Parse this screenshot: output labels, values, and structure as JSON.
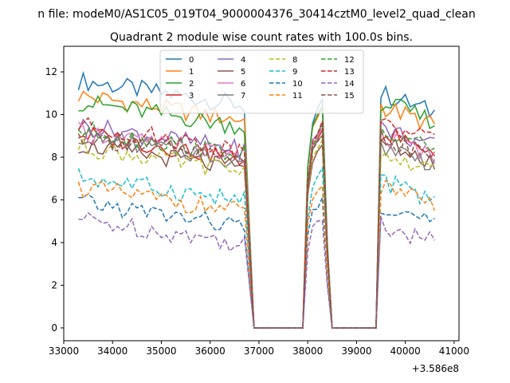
{
  "chart_data": {
    "type": "line",
    "suptitle": "n file: modeM0/AS1C05_019T04_9000004376_30414cztM0_level2_quad_clean",
    "title": "Quadrant 2 module wise count rates with 100.0s bins.",
    "xlabel": "",
    "ylabel": "",
    "x_offset_label": "+3.586e8",
    "xlim": [
      33000,
      41100
    ],
    "ylim": [
      -0.6,
      13.2
    ],
    "xticks": [
      33000,
      34000,
      35000,
      36000,
      37000,
      38000,
      39000,
      40000,
      41000
    ],
    "yticks": [
      0,
      2,
      4,
      6,
      8,
      10,
      12
    ],
    "legend_position": "upper-center",
    "grid": false,
    "segments": [
      {
        "x_start": 33300,
        "x_step": 100,
        "n": 35
      },
      {
        "x_start": 38000,
        "x_step": 100,
        "n": 5
      },
      {
        "x_start": 39500,
        "x_step": 100,
        "n": 12
      }
    ],
    "gap_x": [
      36900,
      37000,
      37100,
      37200,
      37300,
      37400,
      37500,
      37600,
      37700,
      37800,
      37900,
      38500,
      38600,
      38700,
      38800,
      38900,
      39000,
      39100,
      39200,
      39300,
      39400
    ],
    "series": [
      {
        "name": "0",
        "color": "#1f77b4",
        "dash": "solid",
        "level": 11.6,
        "spike": 10.2,
        "after": 11.0
      },
      {
        "name": "1",
        "color": "#ff7f0e",
        "dash": "solid",
        "level": 10.9,
        "spike": 9.9,
        "after": 10.4
      },
      {
        "name": "2",
        "color": "#2ca02c",
        "dash": "solid",
        "level": 10.6,
        "spike": 10.0,
        "after": 10.6
      },
      {
        "name": "3",
        "color": "#d62728",
        "dash": "solid",
        "level": 9.1,
        "spike": 8.8,
        "after": 9.2
      },
      {
        "name": "4",
        "color": "#9467bd",
        "dash": "solid",
        "level": 9.5,
        "spike": 9.2,
        "after": 9.4
      },
      {
        "name": "5",
        "color": "#8c564b",
        "dash": "solid",
        "level": 8.6,
        "spike": 8.2,
        "after": 8.7
      },
      {
        "name": "6",
        "color": "#e377c2",
        "dash": "solid",
        "level": 9.2,
        "spike": 8.9,
        "after": 9.0
      },
      {
        "name": "7",
        "color": "#7f7f7f",
        "dash": "solid",
        "level": 9.0,
        "spike": 8.7,
        "after": 8.6
      },
      {
        "name": "8",
        "color": "#bcbd22",
        "dash": "dashed",
        "level": 8.5,
        "spike": 8.3,
        "after": 8.2
      },
      {
        "name": "9",
        "color": "#17becf",
        "dash": "dashed",
        "level": 7.1,
        "spike": 7.0,
        "after": 6.9
      },
      {
        "name": "10",
        "color": "#1f77b4",
        "dash": "dashed",
        "level": 5.9,
        "spike": 5.7,
        "after": 5.8
      },
      {
        "name": "11",
        "color": "#ff7f0e",
        "dash": "dashed",
        "level": 6.6,
        "spike": 6.4,
        "after": 6.6
      },
      {
        "name": "12",
        "color": "#2ca02c",
        "dash": "dashed",
        "level": 9.3,
        "spike": 9.0,
        "after": 9.4
      },
      {
        "name": "13",
        "color": "#d62728",
        "dash": "dashed",
        "level": 9.5,
        "spike": 9.2,
        "after": 9.6
      },
      {
        "name": "14",
        "color": "#9467bd",
        "dash": "dashed",
        "level": 5.1,
        "spike": 4.9,
        "after": 4.9
      },
      {
        "name": "15",
        "color": "#8c564b",
        "dash": "dashed",
        "level": 9.0,
        "spike": 8.7,
        "after": 8.9
      }
    ]
  }
}
